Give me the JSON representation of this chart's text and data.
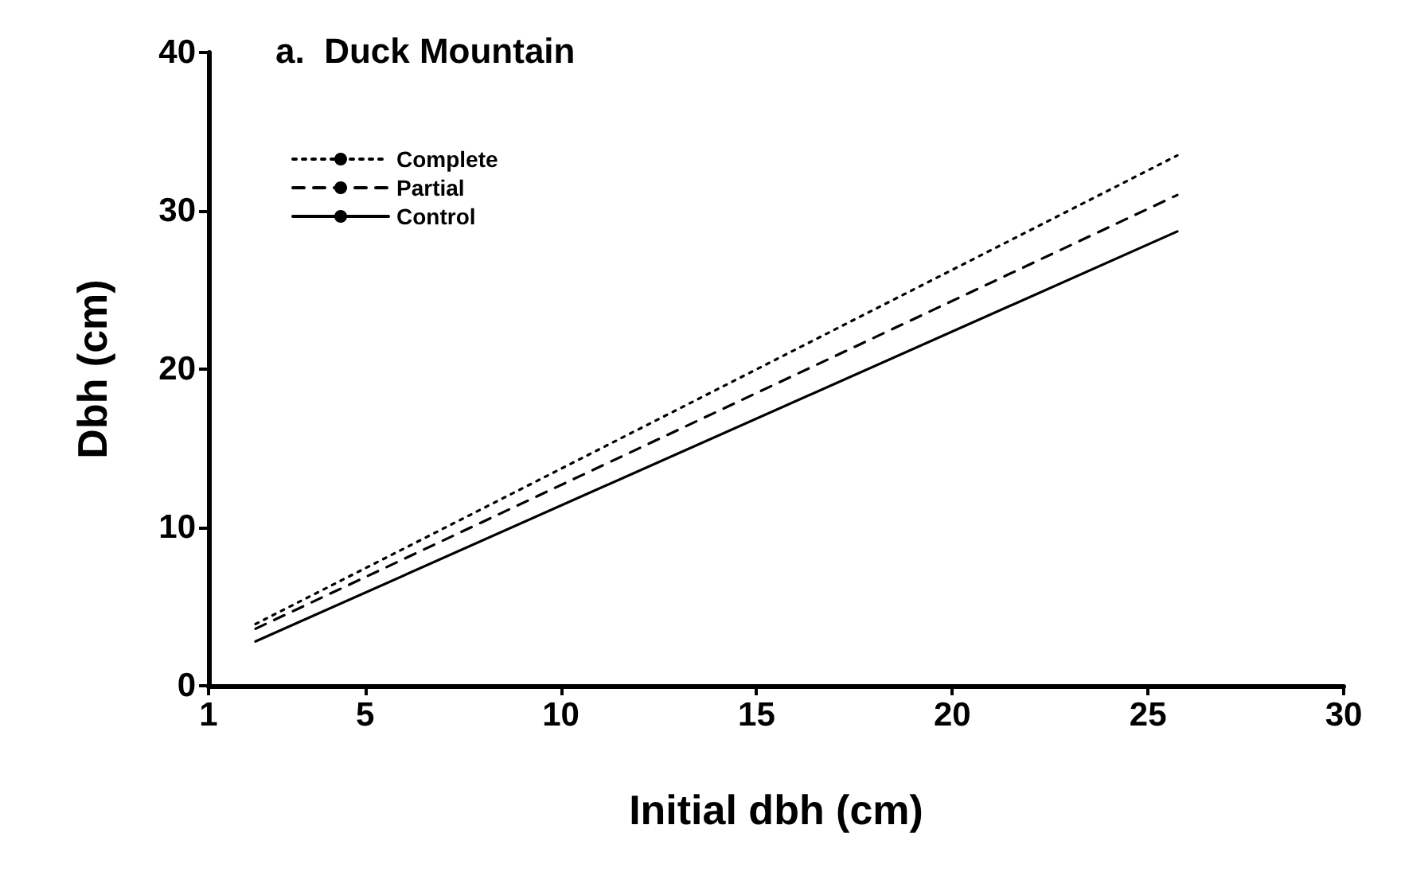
{
  "chart_data": {
    "type": "line",
    "title": "a.  Duck Mountain",
    "xlabel": "Initial dbh (cm)",
    "ylabel": "Dbh (cm)",
    "x": [
      2.2,
      25.75
    ],
    "series": [
      {
        "name": "Complete",
        "color": "#000000",
        "line_style": "dotted",
        "values": [
          3.9,
          33.5
        ]
      },
      {
        "name": "Partial",
        "color": "#000000",
        "line_style": "dashed",
        "values": [
          3.6,
          31.0
        ]
      },
      {
        "name": "Control",
        "color": "#000000",
        "line_style": "solid",
        "values": [
          2.8,
          28.7
        ]
      }
    ],
    "xlim": [
      1,
      30
    ],
    "xticks": [
      1,
      5,
      10,
      15,
      20,
      25,
      30
    ],
    "ylim": [
      0,
      40
    ],
    "yticks": [
      0,
      10,
      20,
      30,
      40
    ],
    "grid": false,
    "legend": "top left",
    "marker": "none"
  }
}
